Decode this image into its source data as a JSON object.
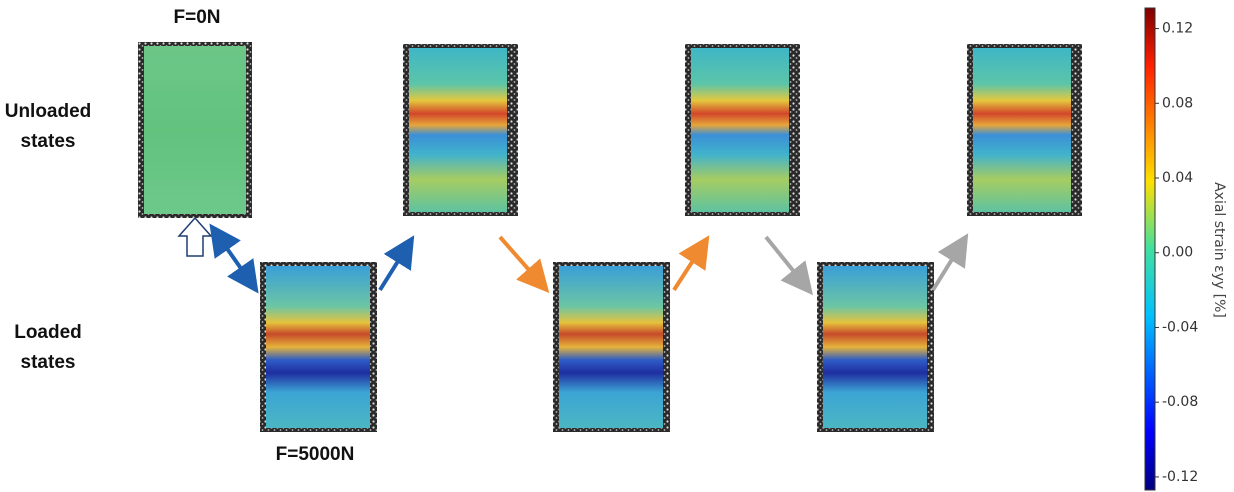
{
  "labels": {
    "top_force": "F=0N",
    "unloaded": [
      "Unloaded",
      "states"
    ],
    "loaded": [
      "Loaded",
      "states"
    ],
    "bottom_force": "F=5000N"
  },
  "colorbar": {
    "title": "Axial strain εyy [%]",
    "lim": [
      -0.127,
      0.131
    ],
    "ticks": [
      0.12,
      0.08,
      0.04,
      {
        "value": 0,
        "label": "0.00"
      },
      -0.04,
      -0.08,
      -0.12
    ]
  }
}
